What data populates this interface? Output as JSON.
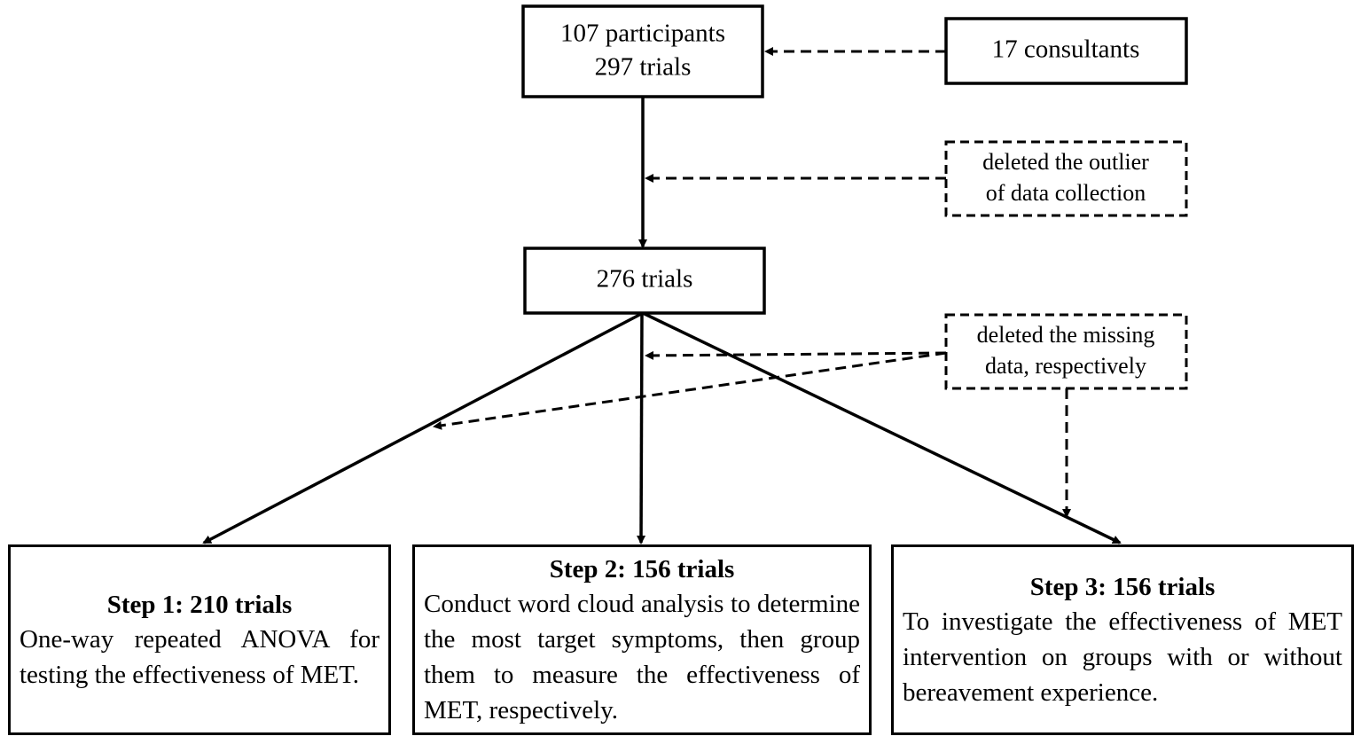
{
  "nodes": [
    {
      "lines": [
        "107 participants",
        "297 trials"
      ]
    },
    {
      "label": "17 consultants"
    },
    {
      "lines": [
        "deleted the outlier",
        "of data collection"
      ]
    },
    {
      "label": "276 trials"
    },
    {
      "lines": [
        "deleted the missing",
        "data,  respectively"
      ]
    }
  ],
  "steps": [
    {
      "title": "Step 1: 210 trials",
      "text": "One-way repeated ANOVA for testing the effectiveness of MET."
    },
    {
      "title": "Step 2: 156 trials",
      "text": "Conduct word cloud analysis to determine the most target symptoms, then group them to measure the effectiveness of MET, respectively."
    },
    {
      "title": "Step 3: 156 trials",
      "text": "To investigate the effectiveness of MET intervention on groups with or without bereavement experience."
    }
  ]
}
